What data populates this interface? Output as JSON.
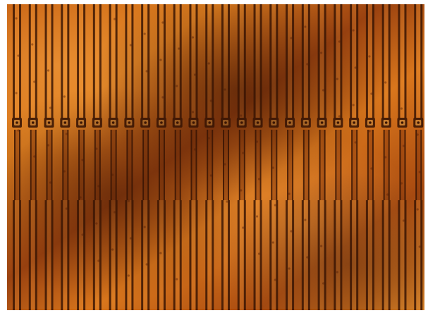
{
  "image": {
    "subject": "flexible-circuit-trace-array",
    "colors": {
      "substrate_light": "#e07a1c",
      "substrate_mid": "#b5500e",
      "substrate_dark": "#5a2106",
      "trace": "#8a3a0c",
      "trace_edge": "#3b1604",
      "highlight": "#f4a040",
      "background": "#ffffff"
    },
    "trace_count": 26,
    "pad_row_count": 1
  }
}
